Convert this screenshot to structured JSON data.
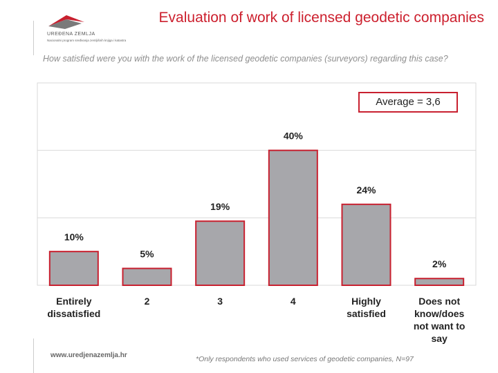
{
  "header": {
    "title": "Evaluation of work of licensed geodetic companies",
    "logo_name": "UREĐENA ZEMLJA",
    "logo_subtitle": "Nacionalni program sređivanja zemljišnih knjiga i katastra"
  },
  "question": "How satisfied were you with the work of the licensed geodetic companies (surveyors) regarding this case?",
  "average_label": "Average = 3,6",
  "footer": {
    "url": "www.uredjenazemlja.hr",
    "note": "*Only respondents who used services of geodetic companies, N=97"
  },
  "colors": {
    "bar_fill": "#a7a7ab",
    "bar_outline": "#c8202f",
    "title": "#cc1f2d",
    "gridline": "#d9d9d9"
  },
  "chart_data": {
    "type": "bar",
    "title": "",
    "xlabel": "",
    "ylabel": "",
    "categories": [
      [
        "Entirely",
        "dissatisfied"
      ],
      [
        "2"
      ],
      [
        "3"
      ],
      [
        "4"
      ],
      [
        "Highly",
        "satisfied"
      ],
      [
        "Does not",
        "know/does",
        "not want to",
        "say"
      ]
    ],
    "values": [
      10,
      5,
      19,
      40,
      24,
      2
    ],
    "data_labels": [
      "10%",
      "5%",
      "19%",
      "40%",
      "24%",
      "2%"
    ],
    "ylim": [
      0,
      60
    ],
    "grid": true,
    "legend": "none"
  }
}
